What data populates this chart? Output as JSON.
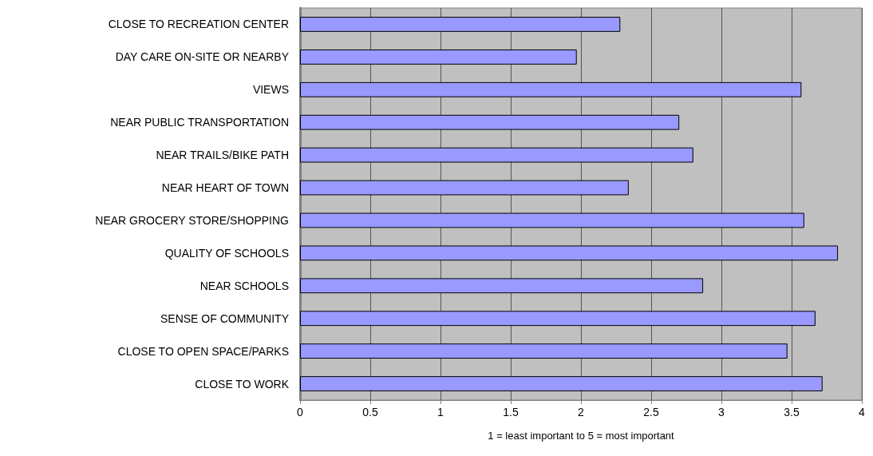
{
  "chart_data": {
    "type": "bar",
    "orientation": "horizontal",
    "xlabel": "1 = least important to 5 = most important",
    "categories": [
      "CLOSE TO RECREATION CENTER",
      "DAY CARE ON-SITE OR NEARBY",
      "VIEWS",
      "NEAR PUBLIC TRANSPORTATION",
      "NEAR TRAILS/BIKE PATH",
      "NEAR HEART OF TOWN",
      "NEAR GROCERY STORE/SHOPPING",
      "QUALITY OF SCHOOLS",
      "NEAR SCHOOLS",
      "SENSE OF COMMUNITY",
      "CLOSE TO OPEN SPACE/PARKS",
      "CLOSE TO WORK"
    ],
    "values": [
      2.28,
      1.97,
      3.57,
      2.7,
      2.8,
      2.34,
      3.59,
      3.83,
      2.87,
      3.67,
      3.47,
      3.72
    ],
    "color": "#9999ff",
    "xlim": [
      0,
      4
    ],
    "xticks": [
      0,
      0.5,
      1,
      1.5,
      2,
      2.5,
      3,
      3.5,
      4
    ],
    "grid": "x"
  }
}
